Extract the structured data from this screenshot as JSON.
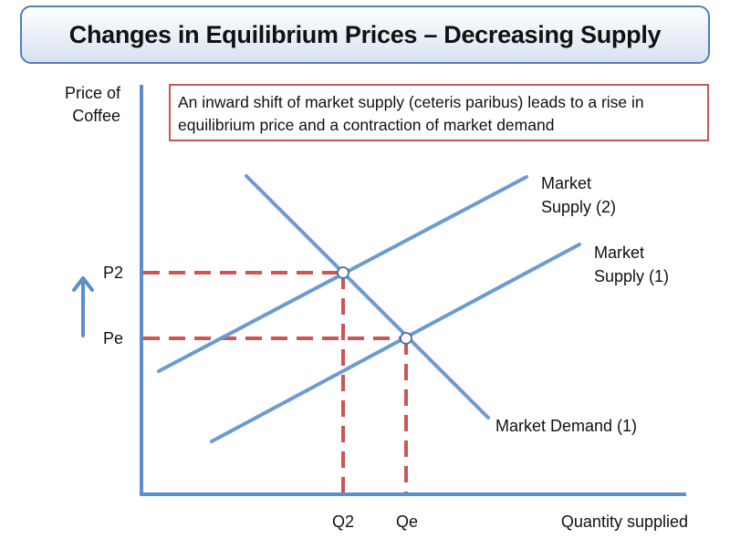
{
  "title": "Changes in Equilibrium Prices – Decreasing Supply",
  "note": "An inward shift of market supply (ceteris paribus) leads to a rise in equilibrium price and a contraction of market demand",
  "axes": {
    "y_label_line1": "Price of",
    "y_label_line2": "Coffee",
    "x_label": "Quantity supplied"
  },
  "price_labels": {
    "p2": "P2",
    "pe": "Pe"
  },
  "quantity_labels": {
    "q2": "Q2",
    "qe": "Qe"
  },
  "curves": {
    "supply2_line1": "Market",
    "supply2_line2": "Supply (2)",
    "supply1_line1": "Market",
    "supply1_line2": "Supply (1)",
    "demand": "Market Demand (1)"
  },
  "colors": {
    "curve": "#6a9bd1",
    "guide": "#cc5555",
    "axis": "#5b8fcb",
    "title_border": "#4f7fbd"
  },
  "icons": {
    "price_rise": "up-arrow-icon"
  }
}
